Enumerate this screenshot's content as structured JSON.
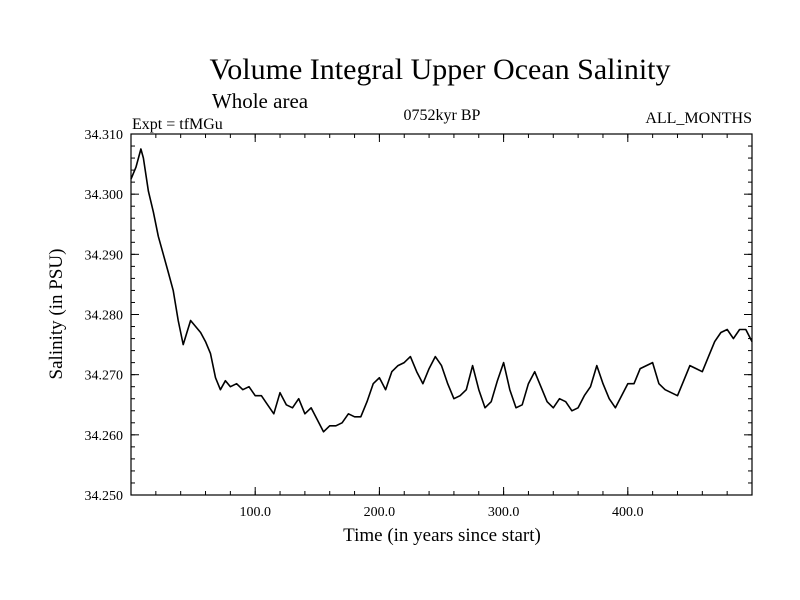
{
  "chart_data": {
    "type": "line",
    "title": "Volume Integral Upper Ocean Salinity",
    "subtitle": "Whole area",
    "experiment": "Expt = tfMGu",
    "period": "0752kyr BP",
    "months": "ALL_MONTHS",
    "xlabel": "Time (in years since start)",
    "ylabel": "Salinity (in PSU)",
    "xlim": [
      0,
      500
    ],
    "ylim": [
      34.25,
      34.31
    ],
    "xticks": [
      100,
      200,
      300,
      400
    ],
    "xtick_labels": [
      "100.0",
      "200.0",
      "300.0",
      "400.0"
    ],
    "yticks": [
      34.25,
      34.26,
      34.27,
      34.28,
      34.29,
      34.3,
      34.31
    ],
    "ytick_labels": [
      "34.250",
      "34.260",
      "34.270",
      "34.280",
      "34.290",
      "34.300",
      "34.310"
    ],
    "series": [
      {
        "name": "Salinity",
        "color": "#000000",
        "x": [
          0,
          4,
          8,
          10,
          14,
          18,
          22,
          26,
          30,
          34,
          38,
          42,
          45,
          48,
          52,
          56,
          60,
          64,
          68,
          72,
          76,
          80,
          85,
          90,
          95,
          100,
          105,
          110,
          115,
          120,
          125,
          130,
          135,
          140,
          145,
          150,
          155,
          160,
          165,
          170,
          175,
          180,
          185,
          190,
          195,
          200,
          205,
          210,
          215,
          220,
          225,
          230,
          235,
          240,
          245,
          250,
          255,
          260,
          265,
          270,
          275,
          280,
          285,
          290,
          295,
          300,
          305,
          310,
          315,
          320,
          325,
          330,
          335,
          340,
          345,
          350,
          355,
          360,
          365,
          370,
          375,
          380,
          385,
          390,
          395,
          400,
          405,
          410,
          415,
          420,
          425,
          430,
          435,
          440,
          445,
          450,
          455,
          460,
          465,
          470,
          475,
          480,
          485,
          490,
          495,
          500
        ],
        "y": [
          34.3025,
          34.3045,
          34.3075,
          34.306,
          34.3005,
          34.297,
          34.293,
          34.29,
          34.287,
          34.284,
          34.279,
          34.275,
          34.277,
          34.279,
          34.278,
          34.277,
          34.2755,
          34.2735,
          34.2695,
          34.2675,
          34.269,
          34.268,
          34.2685,
          34.2675,
          34.268,
          34.2665,
          34.2665,
          34.265,
          34.2635,
          34.267,
          34.265,
          34.2645,
          34.266,
          34.2635,
          34.2645,
          34.2625,
          34.2605,
          34.2615,
          34.2615,
          34.262,
          34.2635,
          34.263,
          34.263,
          34.2655,
          34.2685,
          34.2695,
          34.2675,
          34.2705,
          34.2715,
          34.272,
          34.273,
          34.2705,
          34.2685,
          34.271,
          34.273,
          34.2715,
          34.2685,
          34.266,
          34.2665,
          34.2675,
          34.2715,
          34.2675,
          34.2645,
          34.2655,
          34.269,
          34.272,
          34.2675,
          34.2645,
          34.265,
          34.2685,
          34.2705,
          34.268,
          34.2655,
          34.2645,
          34.266,
          34.2655,
          34.264,
          34.2645,
          34.2665,
          34.268,
          34.2715,
          34.2685,
          34.266,
          34.2645,
          34.2665,
          34.2685,
          34.2685,
          34.271,
          34.2715,
          34.272,
          34.2685,
          34.2675,
          34.267,
          34.2665,
          34.269,
          34.2715,
          34.271,
          34.2705,
          34.273,
          34.2755,
          34.277,
          34.2775,
          34.276,
          34.2775,
          34.2775,
          34.2755
        ]
      }
    ]
  }
}
